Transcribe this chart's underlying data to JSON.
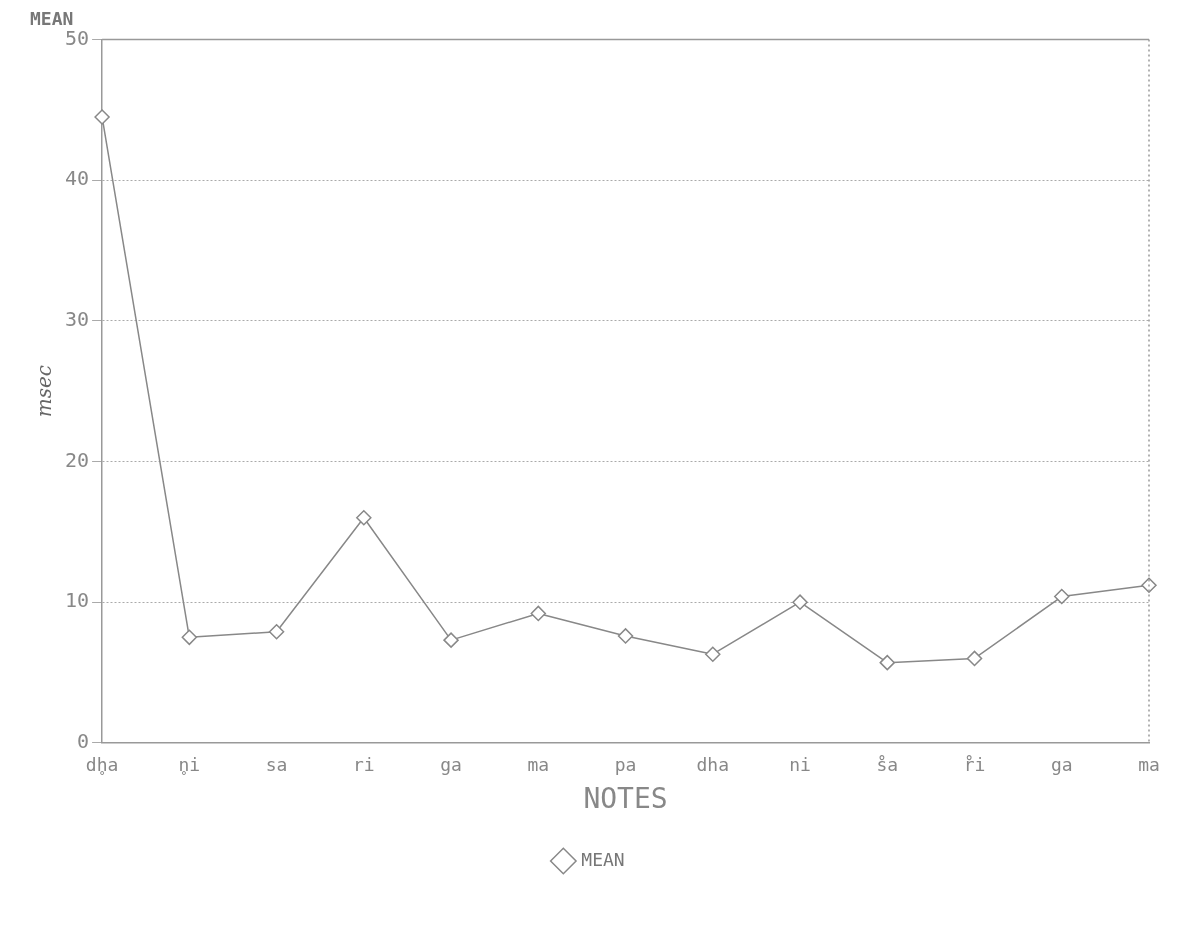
{
  "chart_data": {
    "type": "line",
    "title": "MEAN",
    "xlabel": "NOTES",
    "ylabel": "msec",
    "categories": [
      "dh̥a",
      "n̥i",
      "sa",
      "ri",
      "ga",
      "ma",
      "pa",
      "dha",
      "ni",
      "s̊a",
      "r̊i",
      "ga",
      "ma"
    ],
    "series": [
      {
        "name": "MEAN",
        "color": "#888888",
        "values": [
          44.5,
          7.5,
          7.9,
          16.0,
          7.3,
          9.2,
          7.6,
          6.3,
          10.0,
          5.7,
          6.0,
          10.4,
          11.2
        ]
      }
    ],
    "ylim": [
      0,
      50
    ],
    "yticks": [
      0,
      10,
      20,
      30,
      40,
      50
    ],
    "grid": "y",
    "legend": "bottom",
    "marker": "diamond",
    "line_style": "solid"
  }
}
